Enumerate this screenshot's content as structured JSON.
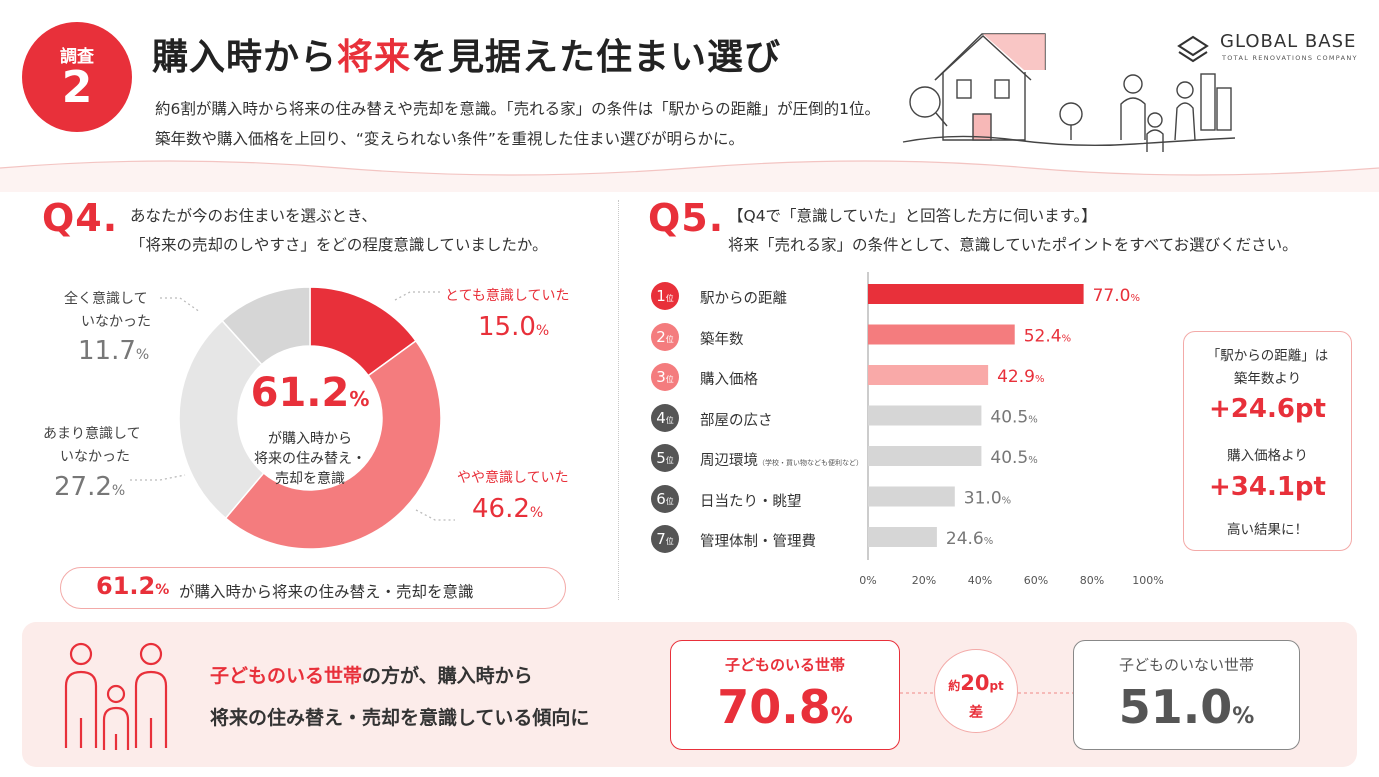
{
  "header": {
    "badge_label": "調査",
    "badge_number": "2",
    "title_pre": "購入時から",
    "title_highlight": "将来",
    "title_post": "を見据えた住まい選び",
    "lead_line1": "約6割が購入時から将来の住み替えや売却を意識。「売れる家」の条件は「駅からの距離」が圧倒的1位。",
    "lead_line2": "築年数や購入価格を上回り、“変えられない条件”を重視した住まい選びが明らかに。",
    "logo_name": "GLOBAL BASE",
    "logo_sub": "TOTAL RENOVATIONS COMPANY"
  },
  "q4": {
    "label": "Q4.",
    "question_line1": "あなたが今のお住まいを選ぶとき、",
    "question_line2": "「将来の売却のしやすさ」をどの程度意識していましたか。",
    "center_value": "61.2",
    "center_unit": "%",
    "center_line1": "が購入時から",
    "center_line2": "将来の住み替え・",
    "center_line3": "売却を意識",
    "pct_unit": "%",
    "segments": [
      {
        "label_line1": "とても意識していた",
        "label_line2": "",
        "value_text": "15.0"
      },
      {
        "label_line1": "やや意識していた",
        "label_line2": "",
        "value_text": "46.2"
      },
      {
        "label_line1": "あまり意識して",
        "label_line2": "いなかった",
        "value_text": "27.2"
      },
      {
        "label_line1": "全く意識して",
        "label_line2": "いなかった",
        "value_text": "11.7"
      }
    ],
    "summary_value": "61.2",
    "summary_unit": "%",
    "summary_text": "が購入時から将来の住み替え・売却を意識"
  },
  "q5": {
    "label": "Q5.",
    "question_line1": "【Q4で「意識していた」と回答した方に伺います。】",
    "question_line2": "将来「売れる家」の条件として、意識していたポイントをすべてお選びください。",
    "rank_suffix": "位",
    "items": [
      {
        "rank": "1",
        "label": "駅からの距離",
        "note": "",
        "value_text": "77.0"
      },
      {
        "rank": "2",
        "label": "築年数",
        "note": "",
        "value_text": "52.4"
      },
      {
        "rank": "3",
        "label": "購入価格",
        "note": "",
        "value_text": "42.9"
      },
      {
        "rank": "4",
        "label": "部屋の広さ",
        "note": "",
        "value_text": "40.5"
      },
      {
        "rank": "5",
        "label": "周辺環境",
        "note": "（学校・買い物なども便利など）",
        "value_text": "40.5"
      },
      {
        "rank": "6",
        "label": "日当たり・眺望",
        "note": "",
        "value_text": "31.0"
      },
      {
        "rank": "7",
        "label": "管理体制・管理費",
        "note": "",
        "value_text": "24.6"
      }
    ],
    "box_line1": "「駅からの距離」は",
    "box_line2": "築年数より",
    "box_value1": "+24.6pt",
    "box_line3": "購入価格より",
    "box_value2": "+34.1pt",
    "box_line4": "高い結果に！"
  },
  "bottom": {
    "line1_highlight": "子どものいる世帯",
    "line1_rest": "の方が、購入時から",
    "line2": "将来の住み替え・売却を意識している傾向に",
    "with_label": "子どものいる世帯",
    "with_value": "70.8",
    "without_label": "子どものいない世帯",
    "without_value": "51.0",
    "pct_unit": "%",
    "gap_prefix": "約",
    "gap_value": "20",
    "gap_unit": "pt",
    "gap_suffix": "差"
  },
  "colors": {
    "accent": "#e8303a",
    "pink": "#f47c7e",
    "light_pink": "#f9a9a8",
    "gray": "#d6d6d6",
    "light_gray": "#e6e6e6",
    "dark_gray_rank": "#555555"
  },
  "chart_data": [
    {
      "type": "pie",
      "variant": "donut",
      "categories": [
        "とても意識していた",
        "やや意識していた",
        "あまり意識していなかった",
        "全く意識していなかった"
      ],
      "values": [
        15.0,
        46.2,
        27.2,
        11.7
      ],
      "colors": [
        "#e8303a",
        "#f47c7e",
        "#e6e6e6",
        "#d6d6d6"
      ],
      "unit": "%"
    },
    {
      "type": "bar",
      "orientation": "horizontal",
      "categories": [
        "駅からの距離",
        "築年数",
        "購入価格",
        "部屋の広さ",
        "周辺環境",
        "日当たり・眺望",
        "管理体制・管理費"
      ],
      "values": [
        77.0,
        52.4,
        42.9,
        40.5,
        40.5,
        31.0,
        24.6
      ],
      "colors": [
        "#e8303a",
        "#f47c7e",
        "#f9a9a8",
        "#d6d6d6",
        "#d6d6d6",
        "#d6d6d6",
        "#d6d6d6"
      ],
      "xlim": [
        0,
        100
      ],
      "xticks": [
        "0%",
        "20%",
        "40%",
        "60%",
        "80%",
        "100%"
      ],
      "grid": false,
      "unit": "%"
    }
  ]
}
